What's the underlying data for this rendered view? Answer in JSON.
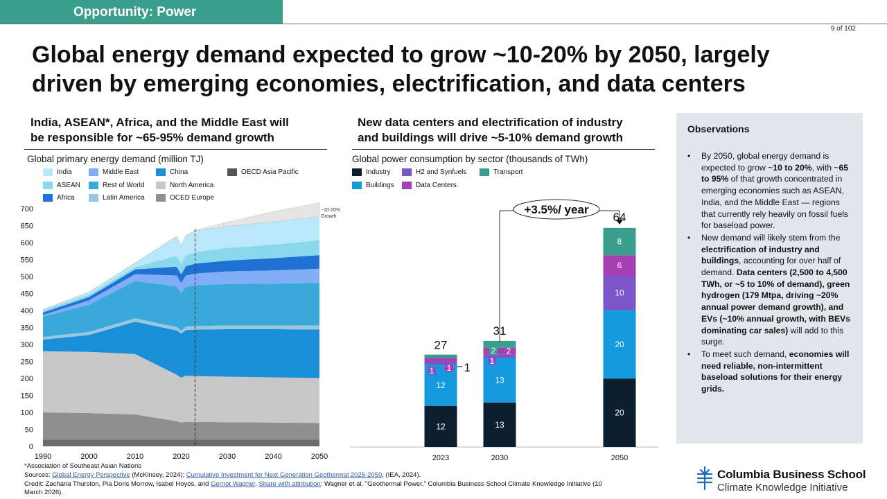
{
  "header": {
    "tag": "Opportunity: Power",
    "page": "9 of 102",
    "title_line1": "Global energy demand expected to grow ~10-20% by 2050, largely",
    "title_line2": "driven by emerging economies, electrification, and data centers"
  },
  "left": {
    "subtitle_line1": "India, ASEAN*, Africa, and the Middle East will",
    "subtitle_line2": "be responsible for ~65-95% demand growth"
  },
  "right": {
    "subtitle_line1": "New data centers and electrification of industry",
    "subtitle_line2": "and buildings will drive ~5-10% demand growth"
  },
  "chart_data": [
    {
      "type": "area",
      "title": "Global primary energy demand (million TJ)",
      "x": [
        1990,
        2000,
        2010,
        2019,
        2020,
        2021,
        2023,
        2030,
        2040,
        2050
      ],
      "x_ticks": [
        "1990",
        "2000",
        "2010",
        "2020",
        "2030",
        "2040",
        "2050"
      ],
      "y_ticks": [
        "0",
        "50",
        "100",
        "150",
        "200",
        "250",
        "300",
        "350",
        "400",
        "450",
        "500",
        "550",
        "600",
        "650",
        "700"
      ],
      "ylim": [
        0,
        700
      ],
      "xlim": [
        1990,
        2050
      ],
      "series": [
        {
          "name": "OCED Europe",
          "color": "#8f8f8f",
          "values": [
            80,
            78,
            74,
            54,
            50,
            52,
            52,
            51,
            50,
            49
          ]
        },
        {
          "name": "North America",
          "color": "#c7c7c7",
          "values": [
            180,
            180,
            178,
            137,
            132,
            136,
            135,
            134,
            133,
            132
          ]
        },
        {
          "name": "China",
          "color": "#1a8ed6",
          "values": [
            34,
            50,
            95,
            130,
            130,
            134,
            137,
            140,
            142,
            143
          ]
        },
        {
          "name": "Latin America",
          "color": "#98c7de",
          "values": [
            8,
            9,
            10,
            10,
            9,
            10,
            10,
            11,
            11,
            12
          ]
        },
        {
          "name": "Rest of World",
          "color": "#39a9d9",
          "values": [
            60,
            80,
            110,
            120,
            110,
            118,
            120,
            122,
            123,
            125
          ]
        },
        {
          "name": "Middle East",
          "color": "#80adf5",
          "values": [
            5,
            13,
            20,
            32,
            30,
            33,
            35,
            37,
            39,
            42
          ]
        },
        {
          "name": "Africa",
          "color": "#1f72d3",
          "values": [
            7,
            10,
            14,
            26,
            25,
            27,
            29,
            32,
            36,
            40
          ]
        },
        {
          "name": "ASEAN",
          "color": "#8ad8ec",
          "values": [
            6,
            7,
            7,
            32,
            30,
            32,
            34,
            37,
            40,
            44
          ]
        },
        {
          "name": "India",
          "color": "#b8e8fa",
          "values": [
            3,
            7,
            12,
            57,
            55,
            58,
            62,
            64,
            67,
            70
          ]
        },
        {
          "name": "~10-20% Growth",
          "color": "#e5e5e5",
          "values": [
            0,
            0,
            0,
            0,
            0,
            0,
            2,
            12,
            30,
            40
          ]
        }
      ],
      "base_other": 20,
      "legend": [
        "India",
        "Middle East",
        "China",
        "OECD  Asia Pacific",
        "ASEAN",
        "Rest of World",
        "North America",
        "Africa",
        "Latin America",
        "OCED  Europe"
      ],
      "legend_colors": [
        "#b8e8fa",
        "#80adf5",
        "#1a8ed6",
        "#555555",
        "#8ad8ec",
        "#39a9d9",
        "#c7c7c7",
        "#1f72d3",
        "#98c7de",
        "#8f8f8f"
      ],
      "growth_label": [
        "~10-20%",
        "Growth"
      ],
      "projection_start": 2023
    },
    {
      "type": "bar",
      "title": "Global power consumption by sector (thousands of TWh)",
      "categories": [
        "2023",
        "2030",
        "2050"
      ],
      "series": [
        {
          "name": "Industry",
          "color": "#0b1f2e",
          "values": [
            12,
            13,
            20
          ]
        },
        {
          "name": "Buildings",
          "color": "#1499dc",
          "values": [
            12,
            13,
            20
          ]
        },
        {
          "name": "H2 and Synfuels",
          "color": "#7c56c8",
          "values": [
            1,
            1,
            10
          ]
        },
        {
          "name": "Data Centers",
          "color": "#a73fb4",
          "values": [
            1,
            2,
            6
          ]
        },
        {
          "name": "Transport",
          "color": "#3a9e8c",
          "values": [
            1,
            2,
            8
          ]
        }
      ],
      "totals": [
        "27",
        "31",
        "64"
      ],
      "callout_value": "1",
      "growth_label": "+3.5%/ year",
      "ylim": [
        0,
        70
      ]
    }
  ],
  "observations": {
    "heading": "Observations",
    "b1": [
      {
        "t": "By 2050, global energy demand is expected to grow ~",
        "b": false
      },
      {
        "t": "10 to 20%",
        "b": true
      },
      {
        "t": ", with ~",
        "b": false
      },
      {
        "t": "65 to 95%",
        "b": true
      },
      {
        "t": " of that growth concentrated in emerging economies such as ASEAN, India, and the Middle East — regions that currently rely heavily on fossil fuels for baseload power.",
        "b": false
      }
    ],
    "b2": [
      {
        "t": "New demand will likely stem from the ",
        "b": false
      },
      {
        "t": "electrification of industry and buildings",
        "b": true
      },
      {
        "t": ", accounting for over half of demand. ",
        "b": false
      },
      {
        "t": "Data centers (2,500 to 4,500 TWh, or ~5 to 10% of demand), green hydrogen (179 Mtpa, driving ~20% annual power demand growth), and EVs (~10% annual growth, with BEVs dominating car sales)",
        "b": true
      },
      {
        "t": " will add to this surge.",
        "b": false
      }
    ],
    "b3": [
      {
        "t": "To meet such demand, ",
        "b": false
      },
      {
        "t": "economies will need reliable, non-intermittent baseload solutions for their energy grids.",
        "b": true
      }
    ]
  },
  "footer": {
    "note": "*Association of Southeast Asian Nations",
    "sources_prefix": "Sources: ",
    "src1": "Global Energy Perspective",
    "src1_after": " (McKinsey, 2024); ",
    "src2": "Cumulative Investment for Next Generation Geothermal 2025-2050",
    "src2_after": ", (IEA, 2024).",
    "credit_prefix": "Credit: Zacharia Thurston, Pia  Doris Morrow, Isabel Hoyos, and ",
    "credit_link1": "Gernot Wagner",
    "credit_mid": ". ",
    "credit_link2": "Share with attribution",
    "credit_after": ": Wagner et al. \"Geothermal Power,\" Columbia Business School Climate  Knowledge Initiative (10",
    "credit_line2": "March 2026)."
  },
  "logo": {
    "name": "Columbia Business School",
    "sub": "Climate Knowledge Initiative"
  }
}
